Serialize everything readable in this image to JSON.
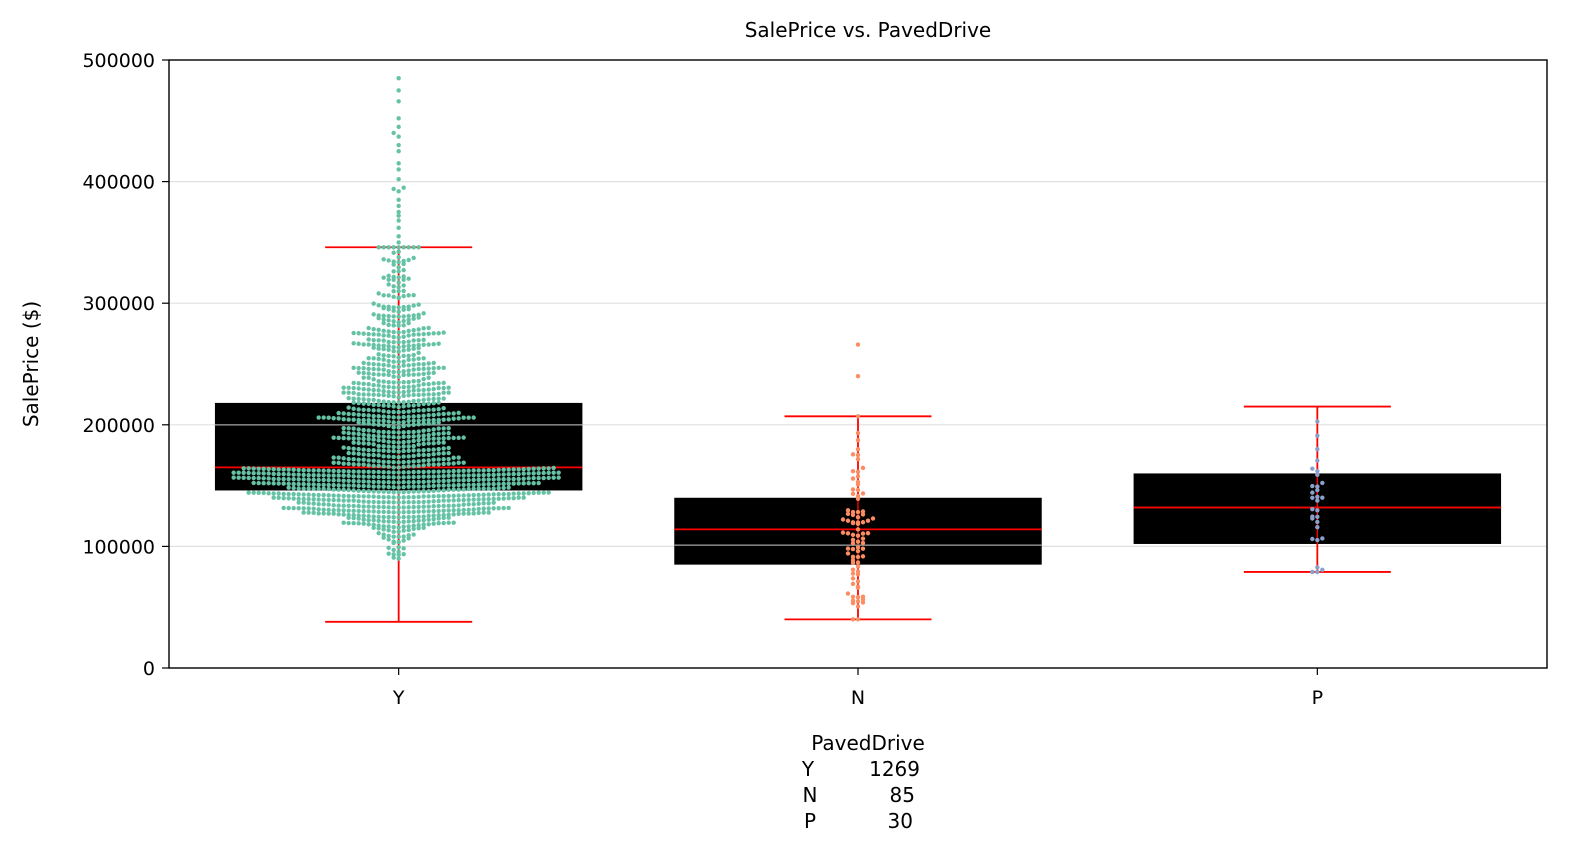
{
  "chart_data": {
    "type": "box",
    "title": "SalePrice vs. PavedDrive",
    "xlabel": "PavedDrive",
    "ylabel": "SalePrice ($)",
    "ylim": [
      0,
      500000
    ],
    "yticks": [
      "0",
      "100000",
      "200000",
      "300000",
      "400000",
      "500000"
    ],
    "ytick_values": [
      0,
      100000,
      200000,
      300000,
      400000,
      500000
    ],
    "grid": "horizontal",
    "categories": [
      "Y",
      "N",
      "P"
    ],
    "boxes": [
      {
        "category": "Y",
        "whisker_low": 38000,
        "q1": 146000,
        "median": 165000,
        "q3": 218000,
        "whisker_high": 346000,
        "mean": 200000,
        "color": "#66c2a5"
      },
      {
        "category": "N",
        "whisker_low": 40000,
        "q1": 85000,
        "median": 114000,
        "q3": 140000,
        "whisker_high": 207000,
        "mean": 101000,
        "color": "#fc8d62"
      },
      {
        "category": "P",
        "whisker_low": 79000,
        "q1": 102000,
        "median": 132000,
        "q3": 160000,
        "whisker_high": 215000,
        "mean": 132000,
        "color": "#8da0cb"
      }
    ],
    "points": [
      {
        "category": "Y",
        "count": 1269,
        "color": "#66c2a5",
        "outliers": [
          485000,
          475000,
          466000,
          452000,
          445000,
          440000,
          437000,
          430000,
          425000,
          415000,
          410000,
          402000,
          395000,
          394000,
          392000,
          385000,
          380000,
          375000,
          372000,
          368000,
          362000,
          355000,
          350000
        ]
      },
      {
        "category": "N",
        "count": 85,
        "color": "#fc8d62",
        "outliers": [
          266000,
          240000
        ]
      },
      {
        "category": "P",
        "count": 30,
        "color": "#8da0cb",
        "outliers": []
      }
    ],
    "counts_table": {
      "header": "PavedDrive",
      "rows": [
        {
          "label": "Y",
          "value": "1269"
        },
        {
          "label": "N",
          "value": "85"
        },
        {
          "label": "P",
          "value": "30"
        }
      ]
    },
    "colors": {
      "box_fill": "#000000",
      "whisker": "#ff0000",
      "median": "#ff0000",
      "mean": "#808080",
      "grid": "#e0e0e0"
    }
  }
}
